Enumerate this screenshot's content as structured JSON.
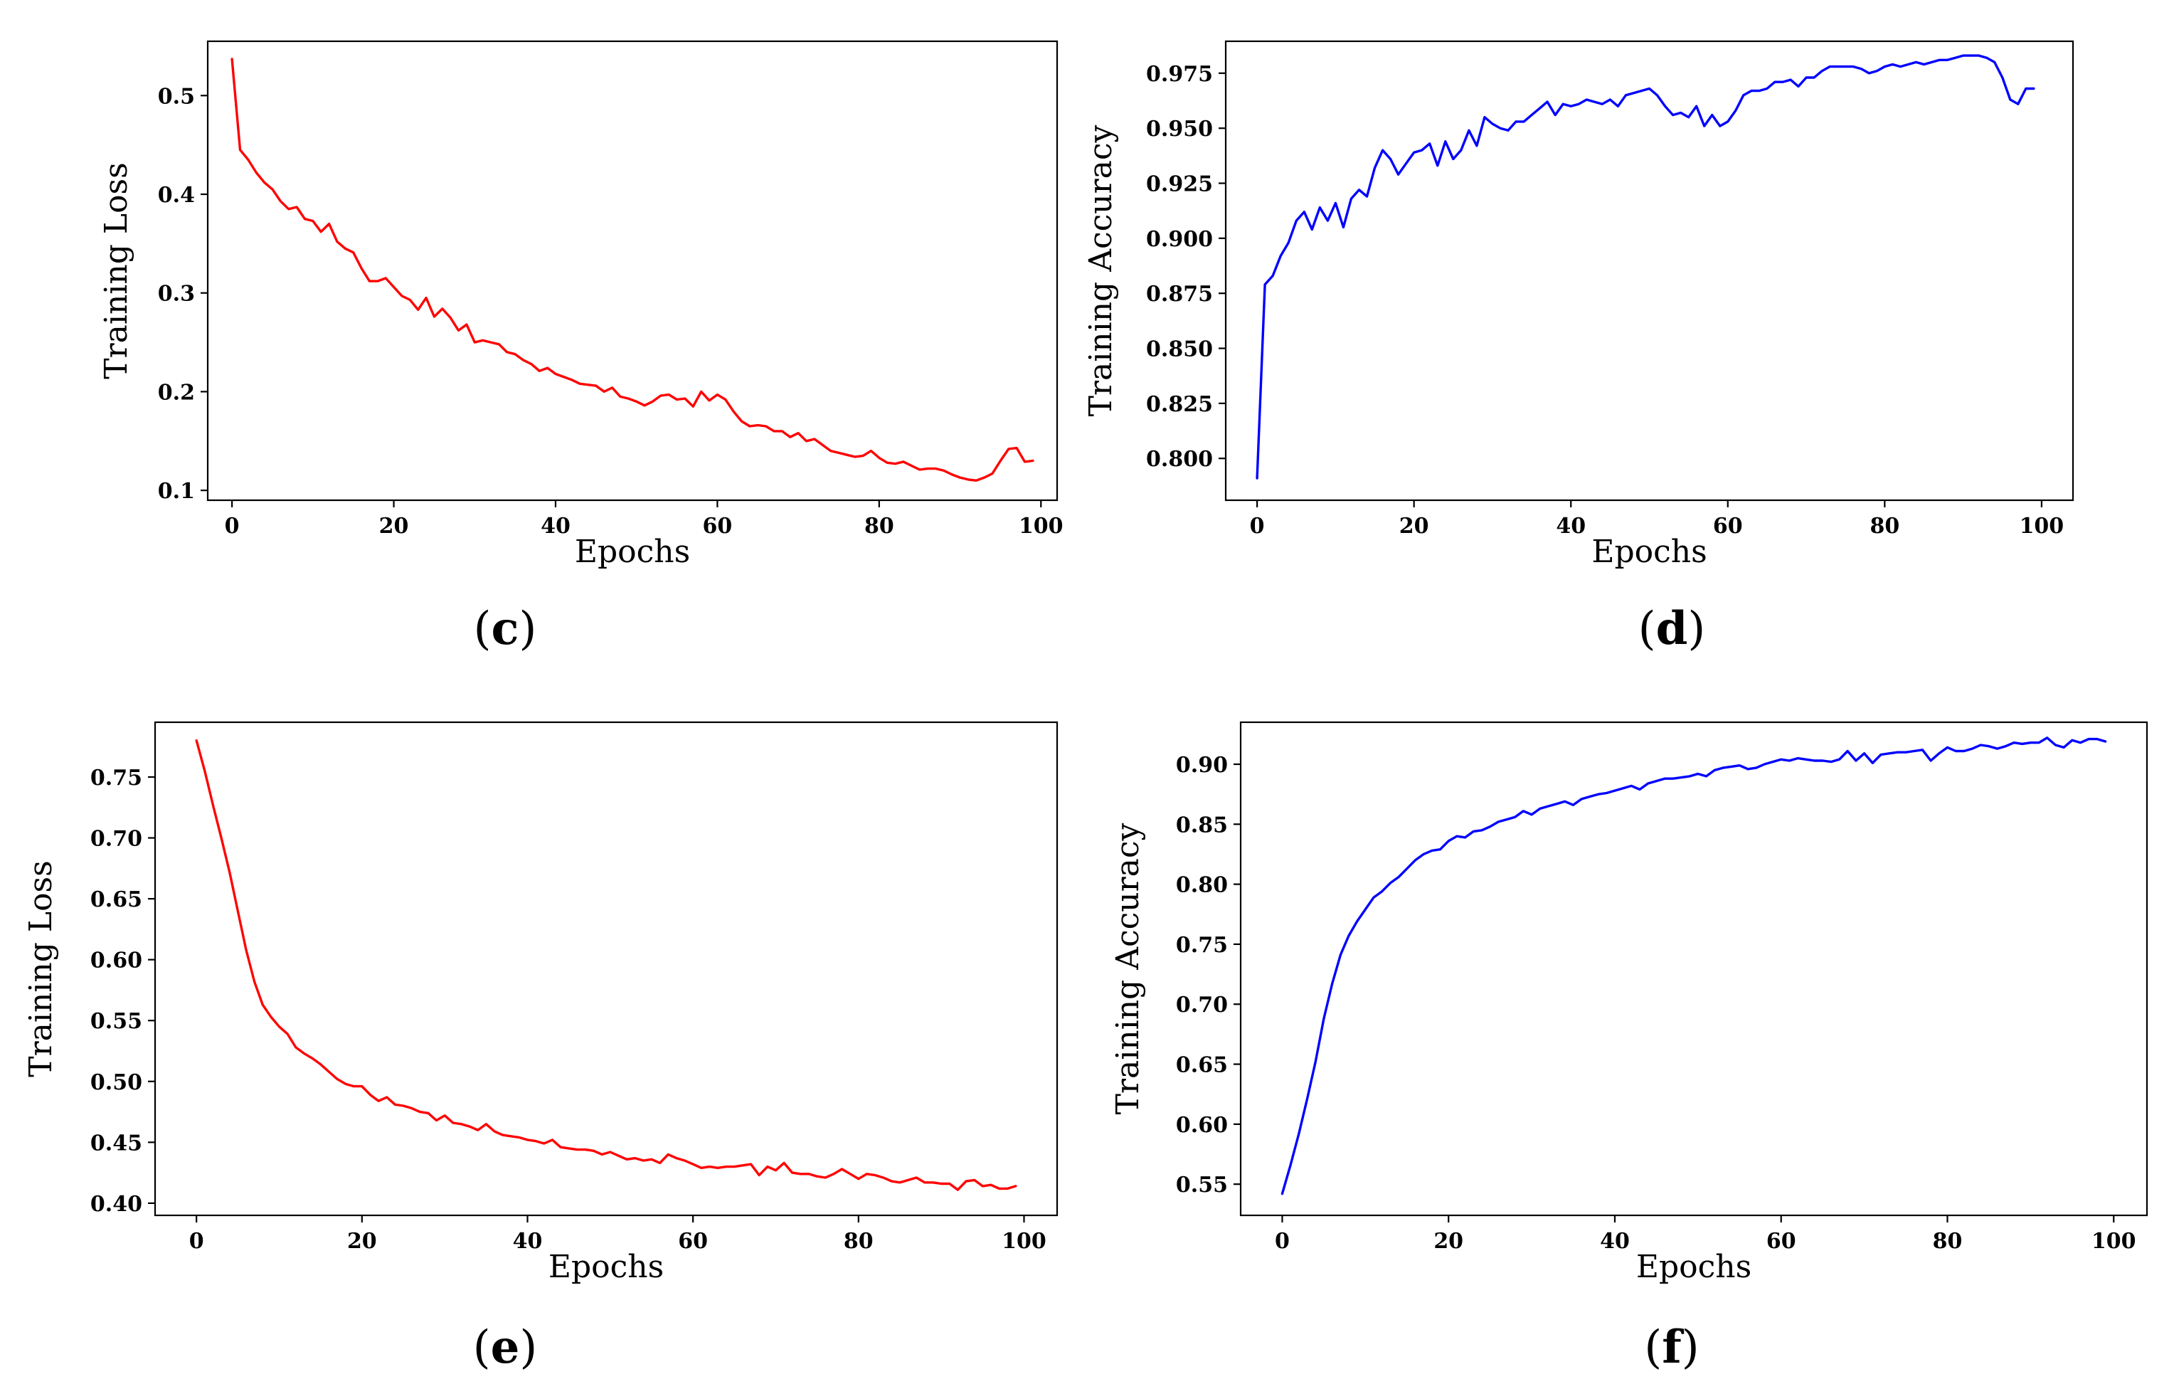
{
  "chart_data": [
    {
      "id": "c",
      "type": "line",
      "panel_label": "c",
      "xlabel": "Epochs",
      "ylabel": "Training Loss",
      "xlim": [
        -3,
        102
      ],
      "ylim": [
        0.09,
        0.555
      ],
      "xticks": [
        0,
        20,
        40,
        60,
        80,
        100
      ],
      "yticks": [
        0.1,
        0.2,
        0.3,
        0.4,
        0.5
      ],
      "ytick_labels": [
        "0.1",
        "0.2",
        "0.3",
        "0.4",
        "0.5"
      ],
      "series": [
        {
          "name": "Training Loss",
          "color": "#ff0000",
          "x": [
            0,
            1,
            2,
            3,
            4,
            5,
            6,
            7,
            8,
            9,
            10,
            11,
            12,
            13,
            14,
            15,
            16,
            17,
            18,
            19,
            20,
            21,
            22,
            23,
            24,
            25,
            26,
            27,
            28,
            29,
            30,
            31,
            32,
            33,
            34,
            35,
            36,
            37,
            38,
            39,
            40,
            41,
            42,
            43,
            44,
            45,
            46,
            47,
            48,
            49,
            50,
            51,
            52,
            53,
            54,
            55,
            56,
            57,
            58,
            59,
            60,
            61,
            62,
            63,
            64,
            65,
            66,
            67,
            68,
            69,
            70,
            71,
            72,
            73,
            74,
            75,
            76,
            77,
            78,
            79,
            80,
            81,
            82,
            83,
            84,
            85,
            86,
            87,
            88,
            89,
            90,
            91,
            92,
            93,
            94,
            95,
            96,
            97,
            98,
            99
          ],
          "y": [
            0.537,
            0.445,
            0.435,
            0.422,
            0.412,
            0.405,
            0.393,
            0.385,
            0.387,
            0.375,
            0.373,
            0.362,
            0.37,
            0.352,
            0.345,
            0.341,
            0.325,
            0.312,
            0.312,
            0.315,
            0.306,
            0.297,
            0.293,
            0.283,
            0.295,
            0.276,
            0.284,
            0.275,
            0.262,
            0.268,
            0.25,
            0.252,
            0.25,
            0.248,
            0.24,
            0.238,
            0.232,
            0.228,
            0.221,
            0.224,
            0.218,
            0.215,
            0.212,
            0.208,
            0.207,
            0.206,
            0.2,
            0.204,
            0.195,
            0.193,
            0.19,
            0.186,
            0.19,
            0.196,
            0.197,
            0.192,
            0.193,
            0.185,
            0.2,
            0.191,
            0.197,
            0.192,
            0.18,
            0.17,
            0.165,
            0.166,
            0.165,
            0.16,
            0.16,
            0.154,
            0.158,
            0.15,
            0.152,
            0.146,
            0.14,
            0.138,
            0.136,
            0.134,
            0.135,
            0.14,
            0.133,
            0.128,
            0.127,
            0.129,
            0.125,
            0.121,
            0.122,
            0.122,
            0.12,
            0.116,
            0.113,
            0.111,
            0.11,
            0.113,
            0.117,
            0.13,
            0.142,
            0.143,
            0.129,
            0.13
          ]
        }
      ]
    },
    {
      "id": "d",
      "type": "line",
      "panel_label": "d",
      "xlabel": "Epochs",
      "ylabel": "Training Accuracy",
      "xlim": [
        -4,
        104
      ],
      "ylim": [
        0.781,
        0.9895
      ],
      "xticks": [
        0,
        20,
        40,
        60,
        80,
        100
      ],
      "yticks": [
        0.8,
        0.825,
        0.85,
        0.875,
        0.9,
        0.925,
        0.95,
        0.975
      ],
      "ytick_labels": [
        "0.800",
        "0.825",
        "0.850",
        "0.875",
        "0.900",
        "0.925",
        "0.950",
        "0.975"
      ],
      "series": [
        {
          "name": "Training Accuracy",
          "color": "#0000ff",
          "x": [
            0,
            1,
            2,
            3,
            4,
            5,
            6,
            7,
            8,
            9,
            10,
            11,
            12,
            13,
            14,
            15,
            16,
            17,
            18,
            19,
            20,
            21,
            22,
            23,
            24,
            25,
            26,
            27,
            28,
            29,
            30,
            31,
            32,
            33,
            34,
            35,
            36,
            37,
            38,
            39,
            40,
            41,
            42,
            43,
            44,
            45,
            46,
            47,
            48,
            49,
            50,
            51,
            52,
            53,
            54,
            55,
            56,
            57,
            58,
            59,
            60,
            61,
            62,
            63,
            64,
            65,
            66,
            67,
            68,
            69,
            70,
            71,
            72,
            73,
            74,
            75,
            76,
            77,
            78,
            79,
            80,
            81,
            82,
            83,
            84,
            85,
            86,
            87,
            88,
            89,
            90,
            91,
            92,
            93,
            94,
            95,
            96,
            97,
            98,
            99
          ],
          "y": [
            0.791,
            0.879,
            0.883,
            0.892,
            0.898,
            0.908,
            0.912,
            0.904,
            0.914,
            0.908,
            0.916,
            0.905,
            0.918,
            0.922,
            0.919,
            0.932,
            0.94,
            0.936,
            0.929,
            0.934,
            0.939,
            0.94,
            0.943,
            0.933,
            0.944,
            0.936,
            0.94,
            0.949,
            0.942,
            0.955,
            0.952,
            0.95,
            0.949,
            0.953,
            0.953,
            0.956,
            0.959,
            0.962,
            0.956,
            0.961,
            0.96,
            0.961,
            0.963,
            0.962,
            0.961,
            0.963,
            0.96,
            0.965,
            0.966,
            0.967,
            0.968,
            0.965,
            0.96,
            0.956,
            0.957,
            0.955,
            0.96,
            0.951,
            0.956,
            0.951,
            0.953,
            0.958,
            0.965,
            0.967,
            0.967,
            0.968,
            0.971,
            0.971,
            0.972,
            0.969,
            0.973,
            0.973,
            0.976,
            0.978,
            0.978,
            0.978,
            0.978,
            0.977,
            0.975,
            0.976,
            0.978,
            0.979,
            0.978,
            0.979,
            0.98,
            0.979,
            0.98,
            0.981,
            0.981,
            0.982,
            0.983,
            0.983,
            0.983,
            0.982,
            0.98,
            0.973,
            0.963,
            0.961,
            0.968,
            0.968
          ]
        }
      ]
    },
    {
      "id": "e",
      "type": "line",
      "panel_label": "e",
      "xlabel": "Epochs",
      "ylabel": "Training Loss",
      "xlim": [
        -5,
        104
      ],
      "ylim": [
        0.39,
        0.795
      ],
      "xticks": [
        0,
        20,
        40,
        60,
        80,
        100
      ],
      "yticks": [
        0.4,
        0.45,
        0.5,
        0.55,
        0.6,
        0.65,
        0.7,
        0.75
      ],
      "ytick_labels": [
        "0.40",
        "0.45",
        "0.50",
        "0.55",
        "0.60",
        "0.65",
        "0.70",
        "0.75"
      ],
      "series": [
        {
          "name": "Training Loss",
          "color": "#ff0000",
          "x": [
            0,
            1,
            2,
            3,
            4,
            5,
            6,
            7,
            8,
            9,
            10,
            11,
            12,
            13,
            14,
            15,
            16,
            17,
            18,
            19,
            20,
            21,
            22,
            23,
            24,
            25,
            26,
            27,
            28,
            29,
            30,
            31,
            32,
            33,
            34,
            35,
            36,
            37,
            38,
            39,
            40,
            41,
            42,
            43,
            44,
            45,
            46,
            47,
            48,
            49,
            50,
            51,
            52,
            53,
            54,
            55,
            56,
            57,
            58,
            59,
            60,
            61,
            62,
            63,
            64,
            65,
            66,
            67,
            68,
            69,
            70,
            71,
            72,
            73,
            74,
            75,
            76,
            77,
            78,
            79,
            80,
            81,
            82,
            83,
            84,
            85,
            86,
            87,
            88,
            89,
            90,
            91,
            92,
            93,
            94,
            95,
            96,
            97,
            98,
            99
          ],
          "y": [
            0.78,
            0.755,
            0.727,
            0.7,
            0.672,
            0.64,
            0.608,
            0.582,
            0.563,
            0.553,
            0.545,
            0.539,
            0.528,
            0.523,
            0.519,
            0.514,
            0.508,
            0.502,
            0.498,
            0.496,
            0.496,
            0.489,
            0.484,
            0.487,
            0.481,
            0.48,
            0.478,
            0.475,
            0.474,
            0.468,
            0.472,
            0.466,
            0.465,
            0.463,
            0.46,
            0.465,
            0.459,
            0.456,
            0.455,
            0.454,
            0.452,
            0.451,
            0.449,
            0.452,
            0.446,
            0.445,
            0.444,
            0.444,
            0.443,
            0.44,
            0.442,
            0.439,
            0.436,
            0.437,
            0.435,
            0.436,
            0.433,
            0.44,
            0.437,
            0.435,
            0.432,
            0.429,
            0.43,
            0.429,
            0.43,
            0.43,
            0.431,
            0.432,
            0.423,
            0.43,
            0.427,
            0.433,
            0.425,
            0.424,
            0.424,
            0.422,
            0.421,
            0.424,
            0.428,
            0.424,
            0.42,
            0.424,
            0.423,
            0.421,
            0.418,
            0.417,
            0.419,
            0.421,
            0.417,
            0.417,
            0.416,
            0.416,
            0.411,
            0.418,
            0.419,
            0.414,
            0.415,
            0.412,
            0.412,
            0.414
          ]
        }
      ]
    },
    {
      "id": "f",
      "type": "line",
      "panel_label": "f",
      "xlabel": "Epochs",
      "ylabel": "Training Accuracy",
      "xlim": [
        -5,
        104
      ],
      "ylim": [
        0.524,
        0.935
      ],
      "xticks": [
        0,
        20,
        40,
        60,
        80,
        100
      ],
      "yticks": [
        0.55,
        0.6,
        0.65,
        0.7,
        0.75,
        0.8,
        0.85,
        0.9
      ],
      "ytick_labels": [
        "0.55",
        "0.60",
        "0.65",
        "0.70",
        "0.75",
        "0.80",
        "0.85",
        "0.90"
      ],
      "series": [
        {
          "name": "Training Accuracy",
          "color": "#0000ff",
          "x": [
            0,
            1,
            2,
            3,
            4,
            5,
            6,
            7,
            8,
            9,
            10,
            11,
            12,
            13,
            14,
            15,
            16,
            17,
            18,
            19,
            20,
            21,
            22,
            23,
            24,
            25,
            26,
            27,
            28,
            29,
            30,
            31,
            32,
            33,
            34,
            35,
            36,
            37,
            38,
            39,
            40,
            41,
            42,
            43,
            44,
            45,
            46,
            47,
            48,
            49,
            50,
            51,
            52,
            53,
            54,
            55,
            56,
            57,
            58,
            59,
            60,
            61,
            62,
            63,
            64,
            65,
            66,
            67,
            68,
            69,
            70,
            71,
            72,
            73,
            74,
            75,
            76,
            77,
            78,
            79,
            80,
            81,
            82,
            83,
            84,
            85,
            86,
            87,
            88,
            89,
            90,
            91,
            92,
            93,
            94,
            95,
            96,
            97,
            98,
            99
          ],
          "y": [
            0.542,
            0.566,
            0.592,
            0.621,
            0.652,
            0.688,
            0.717,
            0.741,
            0.757,
            0.769,
            0.779,
            0.789,
            0.794,
            0.801,
            0.806,
            0.813,
            0.82,
            0.825,
            0.828,
            0.829,
            0.836,
            0.84,
            0.839,
            0.844,
            0.845,
            0.848,
            0.852,
            0.854,
            0.856,
            0.861,
            0.858,
            0.863,
            0.865,
            0.867,
            0.869,
            0.866,
            0.871,
            0.873,
            0.875,
            0.876,
            0.878,
            0.88,
            0.882,
            0.879,
            0.884,
            0.886,
            0.888,
            0.888,
            0.889,
            0.89,
            0.892,
            0.89,
            0.895,
            0.897,
            0.898,
            0.899,
            0.896,
            0.897,
            0.9,
            0.902,
            0.904,
            0.903,
            0.905,
            0.904,
            0.903,
            0.903,
            0.902,
            0.904,
            0.911,
            0.903,
            0.909,
            0.901,
            0.908,
            0.909,
            0.91,
            0.91,
            0.911,
            0.912,
            0.903,
            0.909,
            0.914,
            0.911,
            0.911,
            0.913,
            0.916,
            0.915,
            0.913,
            0.915,
            0.918,
            0.917,
            0.918,
            0.918,
            0.922,
            0.916,
            0.914,
            0.92,
            0.918,
            0.921,
            0.921,
            0.919
          ]
        }
      ]
    }
  ]
}
